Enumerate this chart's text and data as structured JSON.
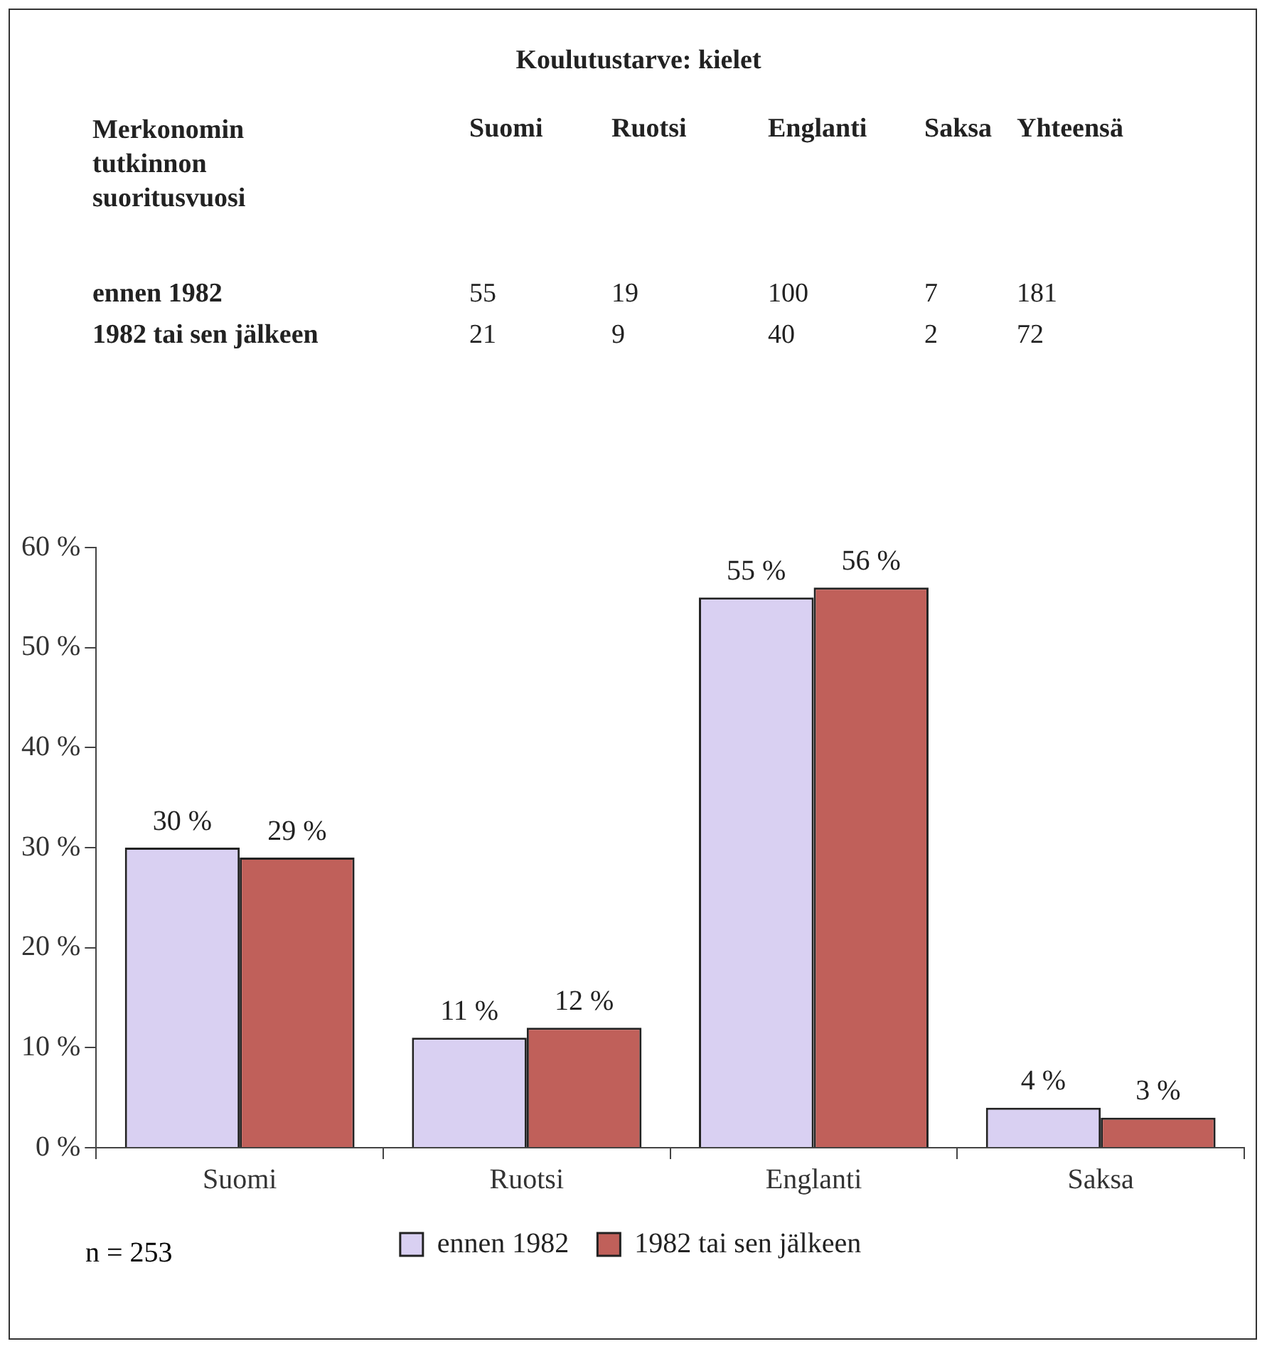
{
  "chart_data": [
    {
      "type": "heatmap",
      "data_labels": true,
      "title": "Koulutustarve: kielet",
      "ylabel": "Merkonomin tutkinnon suoritusvuosi",
      "categories": [
        "Suomi",
        "Ruotsi",
        "Englanti",
        "Saksa",
        "Yhteensä"
      ],
      "y_categories": [
        "ennen 1982",
        "1982 tai sen jälkeen"
      ],
      "cells": [
        [
          55,
          19,
          100,
          7,
          181
        ],
        [
          21,
          9,
          40,
          2,
          72
        ]
      ]
    },
    {
      "type": "bar",
      "categories": [
        "Suomi",
        "Ruotsi",
        "Englanti",
        "Saksa"
      ],
      "series": [
        {
          "name": "ennen 1982",
          "color": "#d9d0f2",
          "values": [
            30,
            11,
            55,
            4
          ],
          "value_labels": [
            "30 %",
            "11 %",
            "55 %",
            "4 %"
          ]
        },
        {
          "name": "1982 tai sen jälkeen",
          "color": "#c0605a",
          "values": [
            29,
            12,
            56,
            3
          ],
          "value_labels": [
            "29 %",
            "12 %",
            "56 %",
            "3 %"
          ]
        }
      ],
      "ylim": [
        0,
        60
      ],
      "yticks": [
        {
          "value": 0,
          "label": "0 %"
        },
        {
          "value": 10,
          "label": "10 %"
        },
        {
          "value": 20,
          "label": "20 %"
        },
        {
          "value": 30,
          "label": "30 %"
        },
        {
          "value": 40,
          "label": "40 %"
        },
        {
          "value": 50,
          "label": "50 %"
        },
        {
          "value": 60,
          "label": "60 %"
        }
      ],
      "grid": false,
      "legend": "bottom",
      "annotations": [
        "n = 253"
      ]
    }
  ]
}
